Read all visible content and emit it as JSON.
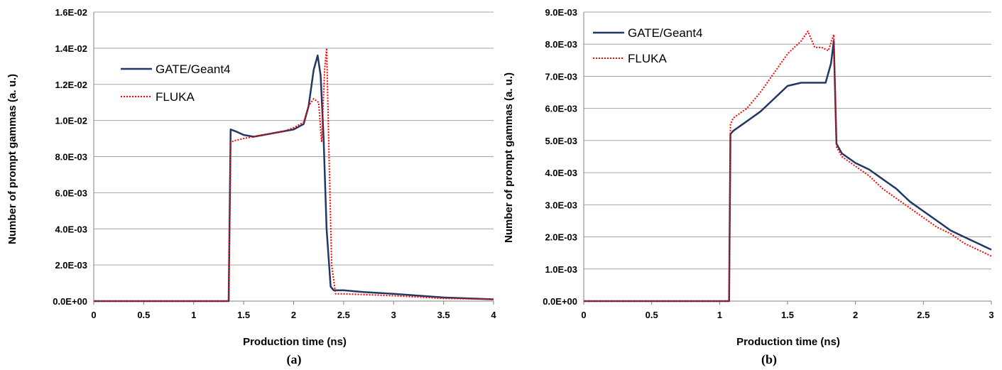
{
  "chart_data": [
    {
      "type": "line",
      "panel_label": "(a)",
      "xlabel": "Production time (ns)",
      "ylabel": "Number of prompt gammas  (a. u.)",
      "xlim": [
        0,
        4
      ],
      "ylim": [
        0,
        0.016
      ],
      "x_ticks": [
        "0",
        "0.5",
        "1",
        "1.5",
        "2",
        "2.5",
        "3",
        "3.5",
        "4"
      ],
      "y_ticks": [
        "0.0E+00",
        "2.0E-03",
        "4.0E-03",
        "6.0E-03",
        "8.0E-03",
        "1.0E-02",
        "1.2E-02",
        "1.4E-02",
        "1.6E-02"
      ],
      "grid": "horizontal",
      "legend_position": "upper-left",
      "series": [
        {
          "name": "GATE/Geant4",
          "color": "#1f3864",
          "style": "solid",
          "points": [
            [
              0,
              0
            ],
            [
              1.0,
              0
            ],
            [
              1.35,
              0
            ],
            [
              1.37,
              0.0095
            ],
            [
              1.42,
              0.0094
            ],
            [
              1.5,
              0.0092
            ],
            [
              1.6,
              0.0091
            ],
            [
              1.7,
              0.0092
            ],
            [
              1.8,
              0.0093
            ],
            [
              1.9,
              0.0094
            ],
            [
              2.0,
              0.0095
            ],
            [
              2.1,
              0.0098
            ],
            [
              2.15,
              0.0108
            ],
            [
              2.2,
              0.0128
            ],
            [
              2.24,
              0.0136
            ],
            [
              2.27,
              0.0125
            ],
            [
              2.3,
              0.009
            ],
            [
              2.33,
              0.004
            ],
            [
              2.37,
              0.0008
            ],
            [
              2.4,
              0.0006
            ],
            [
              2.5,
              0.0006
            ],
            [
              2.7,
              0.0005
            ],
            [
              3.0,
              0.0004
            ],
            [
              3.5,
              0.0002
            ],
            [
              4.0,
              0.0001
            ]
          ]
        },
        {
          "name": "FLUKA",
          "color": "#ff0000",
          "style": "dotted",
          "points": [
            [
              0,
              0
            ],
            [
              1.0,
              0
            ],
            [
              1.35,
              0
            ],
            [
              1.37,
              0.0088
            ],
            [
              1.42,
              0.0089
            ],
            [
              1.5,
              0.009
            ],
            [
              1.6,
              0.0091
            ],
            [
              1.7,
              0.0092
            ],
            [
              1.8,
              0.0093
            ],
            [
              1.9,
              0.0094
            ],
            [
              2.0,
              0.0096
            ],
            [
              2.1,
              0.0099
            ],
            [
              2.15,
              0.0108
            ],
            [
              2.2,
              0.0112
            ],
            [
              2.25,
              0.011
            ],
            [
              2.28,
              0.0088
            ],
            [
              2.31,
              0.0128
            ],
            [
              2.33,
              0.014
            ],
            [
              2.35,
              0.009
            ],
            [
              2.38,
              0.002
            ],
            [
              2.42,
              0.0004
            ],
            [
              2.5,
              0.0004
            ],
            [
              3.0,
              0.0003
            ],
            [
              3.5,
              0.00015
            ],
            [
              4.0,
              0.0001
            ]
          ]
        }
      ]
    },
    {
      "type": "line",
      "panel_label": "(b)",
      "xlabel": "Production time (ns)",
      "ylabel": "Number of prompt gammas (a. u.)",
      "xlim": [
        0,
        3
      ],
      "ylim": [
        0,
        0.009
      ],
      "x_ticks": [
        "0",
        "0.5",
        "1",
        "1.5",
        "2",
        "2.5",
        "3"
      ],
      "y_ticks": [
        "0.0E+00",
        "1.0E-03",
        "2.0E-03",
        "3.0E-03",
        "4.0E-03",
        "5.0E-03",
        "6.0E-03",
        "7.0E-03",
        "8.0E-03",
        "9.0E-03"
      ],
      "grid": "horizontal",
      "legend_position": "upper-left",
      "series": [
        {
          "name": "GATE/Geant4",
          "color": "#1f3864",
          "style": "solid",
          "points": [
            [
              0,
              0
            ],
            [
              1.0,
              0
            ],
            [
              1.07,
              0
            ],
            [
              1.08,
              0.0052
            ],
            [
              1.1,
              0.0053
            ],
            [
              1.2,
              0.0056
            ],
            [
              1.3,
              0.0059
            ],
            [
              1.4,
              0.0063
            ],
            [
              1.5,
              0.0067
            ],
            [
              1.6,
              0.0068
            ],
            [
              1.7,
              0.0068
            ],
            [
              1.78,
              0.0068
            ],
            [
              1.82,
              0.0074
            ],
            [
              1.84,
              0.0081
            ],
            [
              1.86,
              0.0049
            ],
            [
              1.9,
              0.0046
            ],
            [
              2.0,
              0.0043
            ],
            [
              2.1,
              0.0041
            ],
            [
              2.2,
              0.0038
            ],
            [
              2.3,
              0.0035
            ],
            [
              2.4,
              0.0031
            ],
            [
              2.5,
              0.0028
            ],
            [
              2.6,
              0.0025
            ],
            [
              2.7,
              0.0022
            ],
            [
              2.8,
              0.002
            ],
            [
              2.9,
              0.0018
            ],
            [
              3.0,
              0.0016
            ]
          ]
        },
        {
          "name": "FLUKA",
          "color": "#ff0000",
          "style": "dotted",
          "points": [
            [
              0,
              0
            ],
            [
              1.0,
              0
            ],
            [
              1.07,
              0
            ],
            [
              1.08,
              0.0055
            ],
            [
              1.1,
              0.0057
            ],
            [
              1.2,
              0.006
            ],
            [
              1.3,
              0.0065
            ],
            [
              1.4,
              0.0071
            ],
            [
              1.5,
              0.0077
            ],
            [
              1.6,
              0.0081
            ],
            [
              1.65,
              0.0084
            ],
            [
              1.7,
              0.0079
            ],
            [
              1.75,
              0.0079
            ],
            [
              1.8,
              0.0078
            ],
            [
              1.84,
              0.0083
            ],
            [
              1.86,
              0.0048
            ],
            [
              1.9,
              0.0045
            ],
            [
              2.0,
              0.0042
            ],
            [
              2.1,
              0.0039
            ],
            [
              2.2,
              0.0035
            ],
            [
              2.3,
              0.0032
            ],
            [
              2.4,
              0.0029
            ],
            [
              2.5,
              0.0026
            ],
            [
              2.6,
              0.0023
            ],
            [
              2.7,
              0.0021
            ],
            [
              2.8,
              0.0018
            ],
            [
              2.9,
              0.0016
            ],
            [
              3.0,
              0.0014
            ]
          ]
        }
      ]
    }
  ]
}
